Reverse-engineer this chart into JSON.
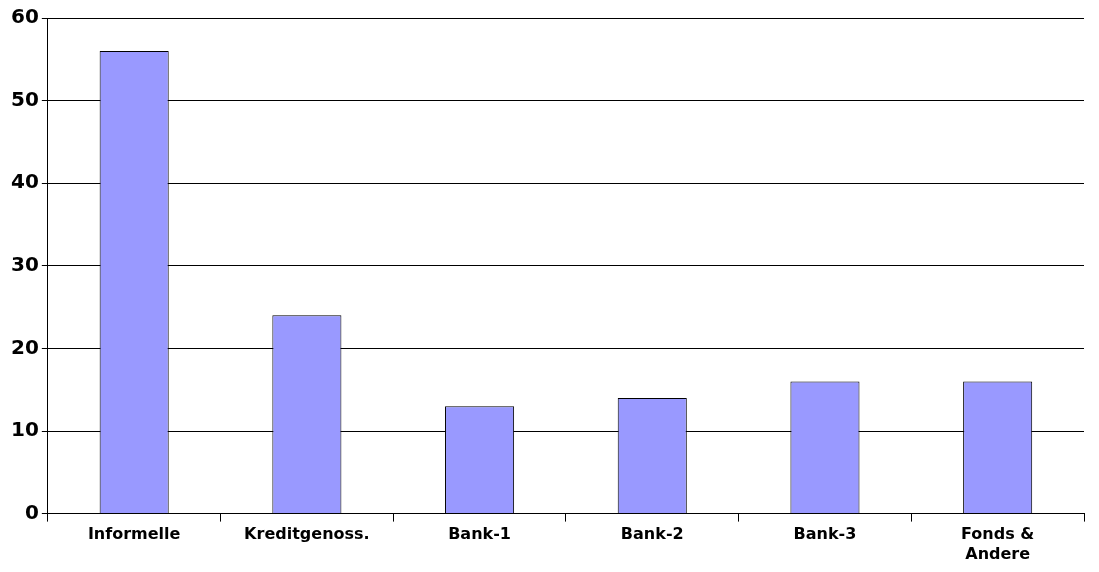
{
  "chart_data": {
    "type": "bar",
    "categories": [
      "Informelle",
      "Kreditgenoss.",
      "Bank-1",
      "Bank-2",
      "Bank-3",
      "Fonds & Andere"
    ],
    "values": [
      56,
      24,
      13,
      14,
      16,
      16
    ],
    "color": "#9999ff",
    "ylim": [
      0,
      60
    ],
    "yticks": [
      0,
      10,
      20,
      30,
      40,
      50,
      60
    ],
    "grid": "y",
    "legend": false
  }
}
